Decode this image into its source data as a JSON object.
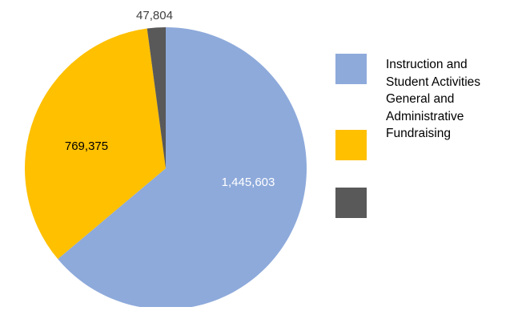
{
  "chart_data": {
    "type": "pie",
    "slices": [
      {
        "label": "Instruction and Student Activities",
        "value": 1445603,
        "display": "1,445,603",
        "color": "#8eaadb",
        "label_color": "#ffffff"
      },
      {
        "label": "General and Administrative",
        "value": 769375,
        "display": "769,375",
        "color": "#ffc000",
        "label_color": "#000000"
      },
      {
        "label": "Fundraising",
        "value": 47804,
        "display": "47,804",
        "color": "#595959",
        "label_color": "#404040"
      }
    ],
    "legend": {
      "placement": "right",
      "text_lines": [
        "Instruction and",
        "Student Activities",
        "General and",
        "Administrative",
        "Fundraising"
      ]
    }
  }
}
